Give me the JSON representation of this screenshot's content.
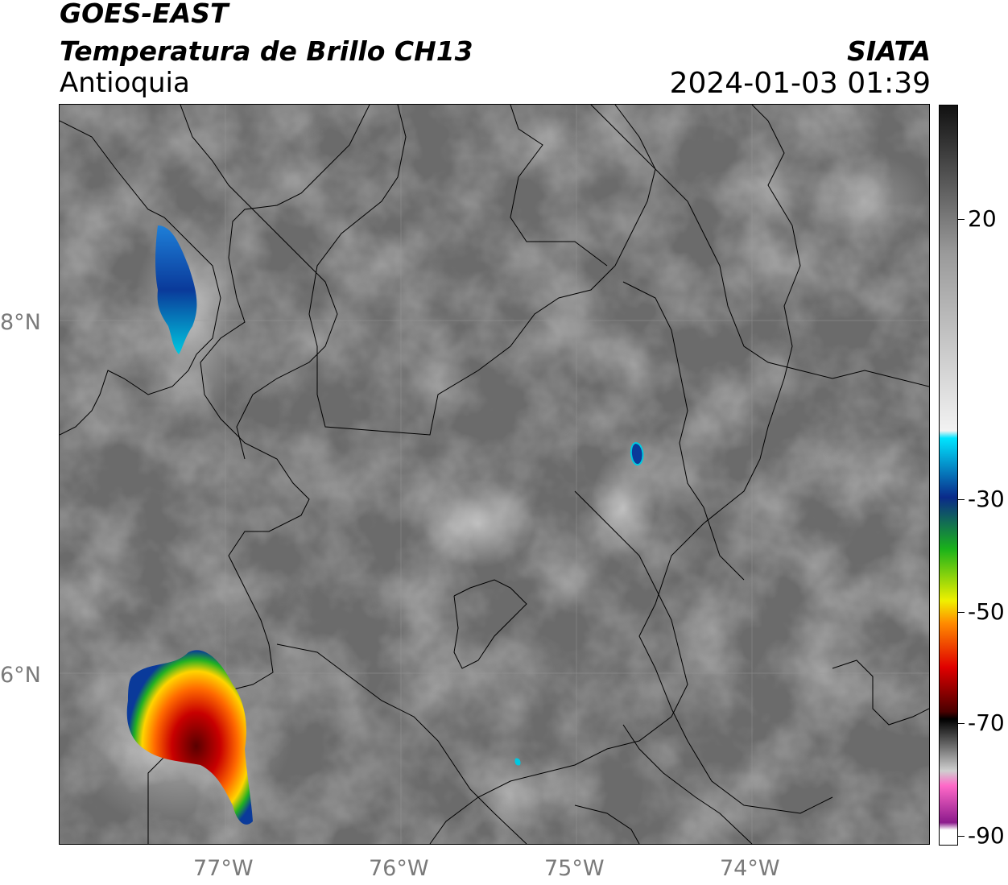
{
  "header": {
    "satellite": "GOES-EAST",
    "product": "Temperatura de Brillo CH13",
    "region": "Antioquia",
    "organization": "SIATA",
    "timestamp": "2024-01-03 01:39"
  },
  "map": {
    "lat_labels": [
      "8°N",
      "6°N"
    ],
    "lon_labels": [
      "77°W",
      "76°W",
      "75°W",
      "74°W"
    ],
    "background_color": "#6c6c6c",
    "cold_cloud_colors": [
      "#1f9e2a",
      "#ffd700",
      "#e81010",
      "#0a3a8a"
    ]
  },
  "colorbar": {
    "ticks": [
      "20",
      "-30",
      "-50",
      "-70",
      "-90"
    ],
    "colors": {
      "gray_top": "#111111",
      "gray_mid": "#9a9a9a",
      "white": "#f2f2f2",
      "cyan": "#00e5ff",
      "blue": "#0a2a8a",
      "green": "#1ab21a",
      "yellow": "#f0f000",
      "orange": "#ff8c00",
      "red": "#e00000",
      "dark_red": "#4a0000",
      "pink": "#ff69c8",
      "purple": "#8c1a8c"
    }
  }
}
